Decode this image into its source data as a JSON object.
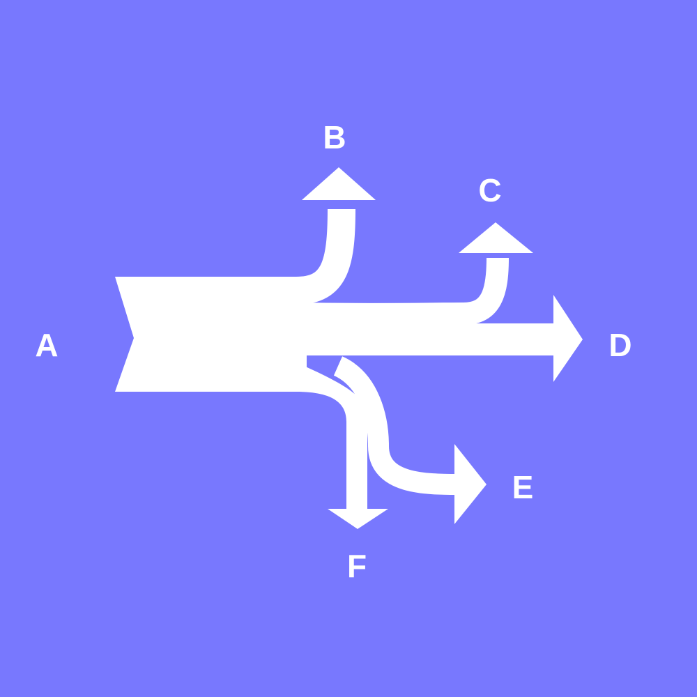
{
  "diagram": {
    "type": "sankey-flow",
    "colors": {
      "background": "#7878fe",
      "flow": "#ffffff",
      "label": "#ffffff"
    },
    "nodes": {
      "a": {
        "label": "A"
      },
      "b": {
        "label": "B"
      },
      "c": {
        "label": "C"
      },
      "d": {
        "label": "D"
      },
      "e": {
        "label": "E"
      },
      "f": {
        "label": "F"
      }
    },
    "flows": [
      {
        "from": "A",
        "to": "B"
      },
      {
        "from": "A",
        "to": "C"
      },
      {
        "from": "A",
        "to": "D"
      },
      {
        "from": "A",
        "to": "E"
      },
      {
        "from": "A",
        "to": "F"
      }
    ]
  }
}
